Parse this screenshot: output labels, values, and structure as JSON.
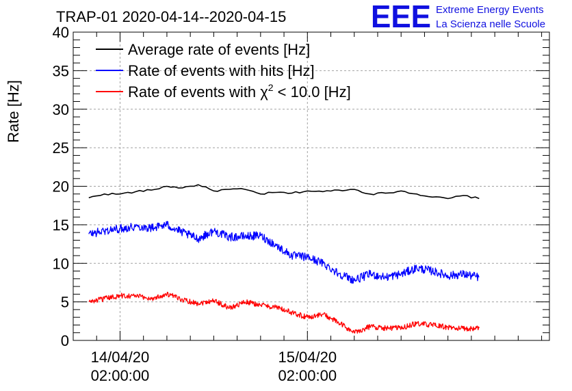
{
  "header": {
    "title": "TRAP-01 2020-04-14--2020-04-15",
    "logo": {
      "letters": "EEE",
      "line1": "Extreme Energy Events",
      "line2": "La Scienza nelle Scuole",
      "color": "#1010e0"
    }
  },
  "chart_data": {
    "type": "line",
    "title": "TRAP-01 2020-04-14--2020-04-15",
    "ylabel": "Rate [Hz]",
    "xlabel": "",
    "ylim": [
      0,
      40
    ],
    "xlim": [
      "2020-04-13 20:00",
      "2020-04-16 09:00"
    ],
    "y_ticks": [
      0,
      5,
      10,
      15,
      20,
      25,
      30,
      35,
      40
    ],
    "x_ticks": [
      {
        "line1": "14/04/20",
        "line2": "02:00:00",
        "x": "2020-04-14 02:00"
      },
      {
        "line1": "15/04/20",
        "line2": "02:00:00",
        "x": "2020-04-15 02:00"
      }
    ],
    "grid": true,
    "legend_position": "top-left",
    "series": [
      {
        "name": "Average rate of events [Hz]",
        "label_main": "Average rate of events [Hz]",
        "color": "#000000",
        "x": [
          "2020-04-13 22:00",
          "2020-04-14 00:00",
          "2020-04-14 02:00",
          "2020-04-14 04:00",
          "2020-04-14 06:00",
          "2020-04-14 08:00",
          "2020-04-14 10:00",
          "2020-04-14 12:00",
          "2020-04-14 14:00",
          "2020-04-14 16:00",
          "2020-04-14 18:00",
          "2020-04-14 20:00",
          "2020-04-14 22:00",
          "2020-04-15 00:00",
          "2020-04-15 02:00",
          "2020-04-15 04:00",
          "2020-04-15 06:00",
          "2020-04-15 08:00",
          "2020-04-15 10:00",
          "2020-04-15 12:00",
          "2020-04-15 14:00",
          "2020-04-15 16:00",
          "2020-04-15 18:00",
          "2020-04-15 20:00",
          "2020-04-15 22:00",
          "2020-04-16 00:00"
        ],
        "y": [
          18.5,
          19.0,
          19.0,
          19.3,
          19.5,
          20.0,
          19.8,
          20.2,
          19.4,
          19.6,
          19.6,
          19.0,
          19.2,
          19.1,
          19.4,
          19.3,
          19.5,
          19.6,
          19.0,
          19.1,
          19.4,
          19.0,
          18.6,
          18.4,
          18.8,
          18.4
        ]
      },
      {
        "name": "Rate of events with hits [Hz]",
        "label_main": "Rate of events with hits [Hz]",
        "color": "#0000ff",
        "x": [
          "2020-04-13 22:00",
          "2020-04-14 00:00",
          "2020-04-14 02:00",
          "2020-04-14 04:00",
          "2020-04-14 06:00",
          "2020-04-14 08:00",
          "2020-04-14 10:00",
          "2020-04-14 12:00",
          "2020-04-14 14:00",
          "2020-04-14 16:00",
          "2020-04-14 18:00",
          "2020-04-14 20:00",
          "2020-04-14 22:00",
          "2020-04-15 00:00",
          "2020-04-15 02:00",
          "2020-04-15 04:00",
          "2020-04-15 06:00",
          "2020-04-15 08:00",
          "2020-04-15 10:00",
          "2020-04-15 12:00",
          "2020-04-15 14:00",
          "2020-04-15 16:00",
          "2020-04-15 18:00",
          "2020-04-15 20:00",
          "2020-04-15 22:00",
          "2020-04-16 00:00"
        ],
        "y": [
          13.8,
          14.2,
          14.5,
          14.8,
          14.6,
          15.0,
          14.0,
          13.2,
          14.2,
          13.4,
          13.5,
          13.6,
          12.3,
          11.0,
          10.8,
          10.0,
          8.7,
          7.8,
          8.6,
          8.2,
          8.6,
          9.4,
          9.0,
          8.4,
          8.6,
          8.2
        ]
      },
      {
        "name": "Rate of events with χ² < 10.0 [Hz]",
        "label_main": "Rate of events with χ",
        "label_sup": "2",
        "label_rest": " < 10.0 [Hz]",
        "color": "#ff0000",
        "x": [
          "2020-04-13 22:00",
          "2020-04-14 00:00",
          "2020-04-14 02:00",
          "2020-04-14 04:00",
          "2020-04-14 06:00",
          "2020-04-14 08:00",
          "2020-04-14 10:00",
          "2020-04-14 12:00",
          "2020-04-14 14:00",
          "2020-04-14 16:00",
          "2020-04-14 18:00",
          "2020-04-14 20:00",
          "2020-04-14 22:00",
          "2020-04-15 00:00",
          "2020-04-15 02:00",
          "2020-04-15 04:00",
          "2020-04-15 06:00",
          "2020-04-15 08:00",
          "2020-04-15 10:00",
          "2020-04-15 12:00",
          "2020-04-15 14:00",
          "2020-04-15 16:00",
          "2020-04-15 18:00",
          "2020-04-15 20:00",
          "2020-04-15 22:00",
          "2020-04-16 00:00"
        ],
        "y": [
          5.0,
          5.4,
          5.8,
          5.8,
          5.4,
          6.0,
          5.3,
          4.8,
          5.2,
          4.2,
          5.0,
          4.6,
          4.3,
          3.6,
          3.0,
          3.4,
          2.3,
          1.0,
          1.8,
          1.6,
          1.6,
          2.2,
          2.0,
          1.7,
          1.5,
          1.6
        ]
      }
    ]
  }
}
